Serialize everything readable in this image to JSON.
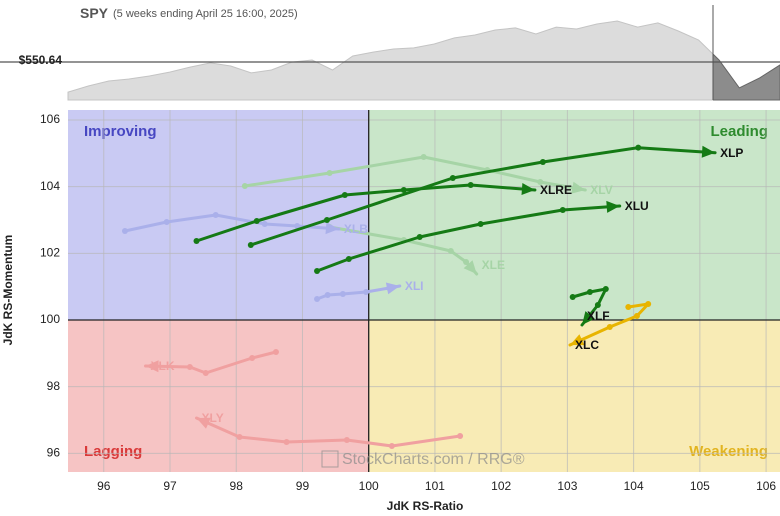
{
  "chart_data": [
    {
      "type": "area",
      "title": "SPY",
      "subtitle": "(5 weeks ending April 25 16:00, 2025)",
      "color": "#dcdcdc",
      "tail_color": "#8c8c8c",
      "values": [
        533.2,
        536.7,
        539.6,
        540.8,
        542.5,
        544.8,
        547.7,
        550.1,
        548.3,
        544.3,
        546.0,
        550.6,
        551.8,
        546.0,
        554.1,
        556.4,
        558.2,
        558.8,
        561.1,
        564.6,
        566.3,
        569.2,
        570.4,
        566.9,
        570.9,
        569.8,
        572.7,
        574.4,
        570.9,
        573.3,
        568.6,
        563.4,
        551.8,
        535.6,
        541.4,
        548.9
      ],
      "ylim": [
        528.6,
        583.7
      ],
      "yticks": [
        {
          "value": 550.64,
          "label": "$550.64"
        }
      ]
    },
    {
      "type": "rrg",
      "xlabel": "JdK RS-Ratio",
      "ylabel": "JdK RS-Momentum",
      "watermark": "StockCharts.com / RRG®",
      "xlim": [
        95.46,
        106.21
      ],
      "ylim": [
        95.44,
        106.3
      ],
      "xticks": [
        96,
        97,
        98,
        99,
        100,
        101,
        102,
        103,
        104,
        105,
        106
      ],
      "yticks": [
        96,
        98,
        100,
        102,
        104,
        106
      ],
      "grid": true,
      "quadrant_center": [
        100,
        100
      ],
      "quadrants": [
        {
          "label": "Improving",
          "corner": "top-left",
          "fill": "#c9caf3",
          "color": "#4747c2"
        },
        {
          "label": "Leading",
          "corner": "top-right",
          "fill": "#c9e6c9",
          "color": "#2e8b2e"
        },
        {
          "label": "Lagging",
          "corner": "bottom-left",
          "fill": "#f6c4c4",
          "color": "#d93a3a"
        },
        {
          "label": "Weakening",
          "corner": "bottom-right",
          "fill": "#f8ebb5",
          "color": "#e2b420"
        }
      ],
      "series": [
        {
          "name": "XLV",
          "color": "#a6d4a6",
          "x": [
            98.13,
            99.41,
            100.83,
            101.79,
            102.59,
            103.27
          ],
          "values": [
            104.02,
            104.41,
            104.89,
            104.5,
            104.14,
            103.9
          ]
        },
        {
          "name": "XLE",
          "color": "#a6d4a6",
          "x": [
            99.41,
            100.53,
            101.24,
            101.47,
            101.63
          ],
          "values": [
            102.79,
            102.4,
            102.07,
            101.74,
            101.38
          ]
        },
        {
          "name": "XLB",
          "color": "#aab0ea",
          "x": [
            96.32,
            96.95,
            97.69,
            98.43,
            98.92,
            99.55
          ],
          "values": [
            102.67,
            102.94,
            103.15,
            102.88,
            102.82,
            102.73
          ]
        },
        {
          "name": "XLI",
          "color": "#aab0ea",
          "x": [
            99.22,
            99.38,
            99.61,
            99.96,
            100.31,
            100.47
          ],
          "values": [
            100.63,
            100.75,
            100.78,
            100.84,
            100.96,
            101.02
          ]
        },
        {
          "name": "XLK",
          "color": "#f0a0a0",
          "x": [
            98.6,
            98.24,
            97.54,
            97.3,
            96.63
          ],
          "values": [
            99.04,
            98.86,
            98.41,
            98.59,
            98.62
          ]
        },
        {
          "name": "XLY",
          "color": "#f0a0a0",
          "x": [
            101.38,
            100.35,
            99.67,
            98.76,
            98.05,
            97.4
          ],
          "values": [
            96.52,
            96.22,
            96.4,
            96.34,
            96.49,
            97.06
          ]
        },
        {
          "name": "XLRE",
          "color": "#157a15",
          "x": [
            97.4,
            98.31,
            99.64,
            100.53,
            101.54,
            102.51
          ],
          "values": [
            102.37,
            102.97,
            103.75,
            103.9,
            104.05,
            103.9
          ]
        },
        {
          "name": "XLP",
          "color": "#157a15",
          "x": [
            98.22,
            99.37,
            101.27,
            102.63,
            104.07,
            105.23
          ],
          "values": [
            102.25,
            103.0,
            104.26,
            104.74,
            105.17,
            105.02
          ]
        },
        {
          "name": "XLU",
          "color": "#157a15",
          "x": [
            99.22,
            99.7,
            100.77,
            101.69,
            102.93,
            103.79
          ],
          "values": [
            101.47,
            101.83,
            102.49,
            102.88,
            103.3,
            103.42
          ]
        },
        {
          "name": "XLF",
          "color": "#157a15",
          "x": [
            103.08,
            103.34,
            103.58,
            103.46,
            103.22
          ],
          "values": [
            100.69,
            100.84,
            100.93,
            100.45,
            99.85
          ]
        },
        {
          "name": "XLC",
          "color": "#e8b400",
          "x": [
            103.92,
            104.22,
            104.05,
            103.64,
            103.04
          ],
          "values": [
            100.39,
            100.48,
            100.12,
            99.79,
            99.25
          ]
        }
      ]
    }
  ]
}
